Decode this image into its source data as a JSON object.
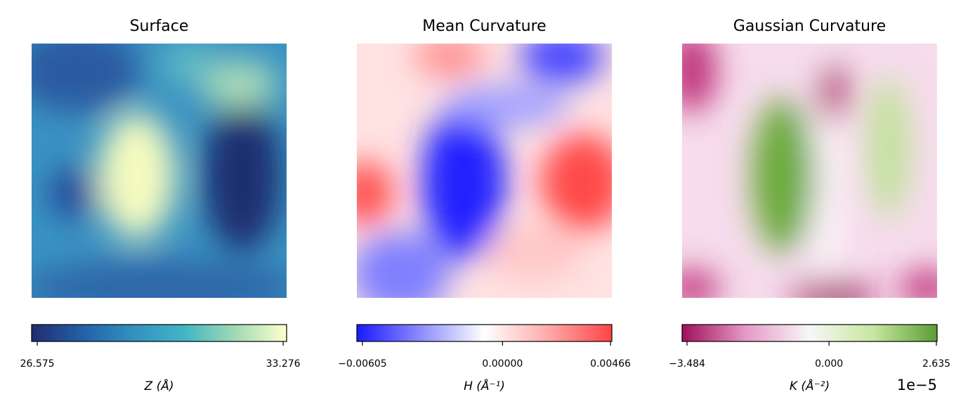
{
  "chart_data": [
    {
      "type": "heatmap",
      "title": "Surface",
      "colorbar": {
        "label": "Z (Å)",
        "lim": [
          26.42,
          33.37
        ],
        "ticks": [
          26.575,
          33.276
        ],
        "colors": [
          "#1f2d6f",
          "#2460a7",
          "#3291c1",
          "#41b6c4",
          "#a1dab4",
          "#ffffcc"
        ]
      }
    },
    {
      "type": "heatmap",
      "title": "Mean Curvature",
      "colorbar": {
        "label": "H (Å⁻¹)",
        "lim": [
          -0.00629,
          0.00472
        ],
        "ticks": [
          {
            "value": -0.00605,
            "label": "−0.00605"
          },
          {
            "value": 0,
            "label": "0.00000"
          },
          0.00466
        ],
        "colors": [
          "#1a1aff",
          "#8c8cff",
          "#ffffff",
          "#ffaaaa",
          "#ff4444"
        ]
      }
    },
    {
      "type": "heatmap",
      "title": "Gaussian Curvature",
      "colorbar": {
        "label": "K (Å⁻²)",
        "offset_text": "1e−5",
        "lim": [
          -3.605,
          2.652
        ],
        "ticks": [
          {
            "value": -3.484,
            "label": "−3.484"
          },
          {
            "value": 0,
            "label": "0.000"
          },
          2.635
        ],
        "colors": [
          "#a0105a",
          "#e59ac7",
          "#f7f7f7",
          "#c8e6a0",
          "#5a9e32"
        ]
      }
    }
  ]
}
